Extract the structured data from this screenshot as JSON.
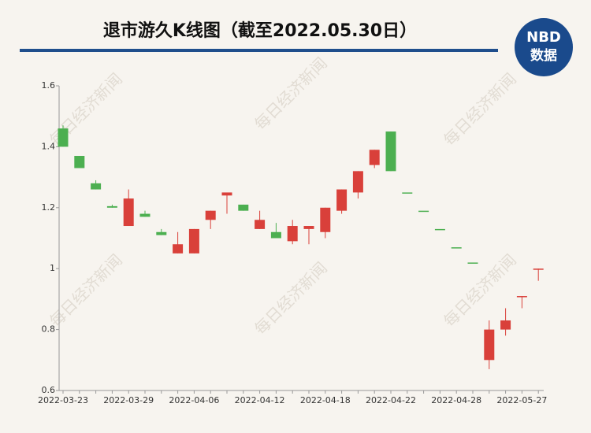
{
  "chart_data": {
    "type": "candlestick",
    "title": "退市游久K线图（截至2022.05.30日）",
    "categories": [
      "2022-03-23",
      null,
      null,
      null,
      "2022-03-29",
      null,
      null,
      null,
      "2022-04-06",
      null,
      null,
      null,
      "2022-04-12",
      null,
      null,
      null,
      "2022-04-18",
      null,
      null,
      null,
      "2022-04-22",
      null,
      null,
      null,
      "2022-04-28",
      null,
      null,
      null,
      "2022-05-27",
      null
    ],
    "open": [
      1.46,
      1.37,
      1.28,
      1.205,
      1.14,
      1.18,
      1.12,
      1.05,
      1.05,
      1.16,
      1.24,
      1.21,
      1.13,
      1.12,
      1.09,
      1.13,
      1.12,
      1.19,
      1.25,
      1.34,
      1.45,
      1.25,
      1.19,
      1.13,
      1.07,
      1.02,
      0.7,
      0.8,
      0.91,
      1.0
    ],
    "high": [
      1.47,
      1.37,
      1.29,
      1.21,
      1.26,
      1.19,
      1.13,
      1.12,
      1.13,
      1.19,
      1.25,
      1.21,
      1.19,
      1.15,
      1.16,
      1.14,
      1.2,
      1.26,
      1.32,
      1.39,
      1.45,
      1.25,
      1.19,
      1.13,
      1.07,
      1.02,
      0.83,
      0.87,
      0.91,
      1.0
    ],
    "low": [
      1.4,
      1.33,
      1.26,
      1.2,
      1.14,
      1.17,
      1.11,
      1.05,
      1.05,
      1.13,
      1.18,
      1.19,
      1.13,
      1.1,
      1.08,
      1.08,
      1.1,
      1.18,
      1.23,
      1.33,
      1.32,
      1.25,
      1.19,
      1.13,
      1.07,
      1.02,
      0.67,
      0.78,
      0.87,
      0.96
    ],
    "close": [
      1.4,
      1.33,
      1.26,
      1.2,
      1.23,
      1.17,
      1.11,
      1.08,
      1.13,
      1.19,
      1.25,
      1.19,
      1.16,
      1.1,
      1.14,
      1.14,
      1.2,
      1.26,
      1.32,
      1.39,
      1.32,
      1.25,
      1.19,
      1.13,
      1.07,
      1.02,
      0.8,
      0.83,
      0.91,
      1.0
    ],
    "up_color": "#d9403a",
    "down_color": "#4caf50",
    "ylim": [
      0.6,
      1.6
    ],
    "yticks": [
      0.6,
      0.8,
      1,
      1.2,
      1.4,
      1.6
    ]
  },
  "logo": {
    "line1": "NBD",
    "line2": "数据"
  },
  "watermark": "每日经济新闻"
}
